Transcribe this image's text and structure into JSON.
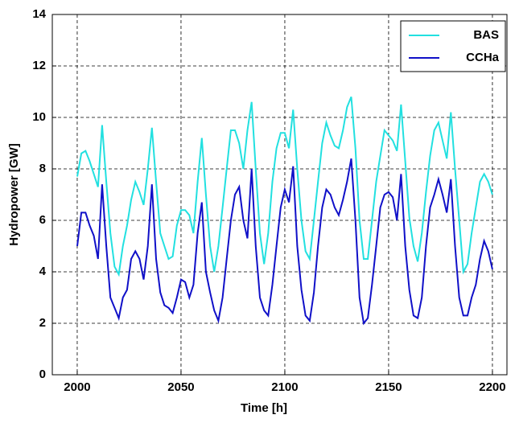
{
  "chart_data": {
    "type": "line",
    "x_label": "Time [h]",
    "y_label": "Hydropower [GW]",
    "x": [
      2000,
      2002,
      2004,
      2006,
      2008,
      2010,
      2012,
      2014,
      2016,
      2018,
      2020,
      2022,
      2024,
      2026,
      2028,
      2030,
      2032,
      2034,
      2036,
      2038,
      2040,
      2042,
      2044,
      2046,
      2048,
      2050,
      2052,
      2054,
      2056,
      2058,
      2060,
      2062,
      2064,
      2066,
      2068,
      2070,
      2072,
      2074,
      2076,
      2078,
      2080,
      2082,
      2084,
      2086,
      2088,
      2090,
      2092,
      2094,
      2096,
      2098,
      2100,
      2102,
      2104,
      2106,
      2108,
      2110,
      2112,
      2114,
      2116,
      2118,
      2120,
      2122,
      2124,
      2126,
      2128,
      2130,
      2132,
      2134,
      2136,
      2138,
      2140,
      2142,
      2144,
      2146,
      2148,
      2150,
      2152,
      2154,
      2156,
      2158,
      2160,
      2162,
      2164,
      2166,
      2168,
      2170,
      2172,
      2174,
      2176,
      2178,
      2180,
      2182,
      2184,
      2186,
      2188,
      2190,
      2192,
      2194,
      2196,
      2198,
      2200
    ],
    "series": [
      {
        "name": "BAS",
        "color": "#22e0e0",
        "values": [
          7.7,
          8.6,
          8.7,
          8.3,
          7.8,
          7.3,
          9.7,
          7.5,
          5.5,
          4.2,
          3.9,
          5.0,
          5.8,
          6.8,
          7.5,
          7.1,
          6.6,
          8.0,
          9.6,
          7.5,
          5.5,
          5.0,
          4.5,
          4.6,
          5.8,
          6.4,
          6.4,
          6.2,
          5.5,
          7.5,
          9.2,
          7.0,
          5.0,
          4.0,
          5.0,
          6.5,
          8.0,
          9.5,
          9.5,
          9.0,
          8.0,
          9.5,
          10.6,
          8.0,
          5.5,
          4.3,
          5.5,
          7.5,
          8.8,
          9.4,
          9.4,
          8.8,
          10.3,
          8.0,
          6.0,
          4.8,
          4.5,
          6.0,
          7.5,
          9.0,
          9.8,
          9.3,
          8.9,
          8.8,
          9.5,
          10.4,
          10.8,
          8.8,
          6.0,
          4.5,
          4.5,
          6.0,
          7.5,
          8.5,
          9.5,
          9.3,
          9.1,
          8.7,
          10.5,
          8.3,
          6.1,
          5.0,
          4.4,
          5.5,
          7.1,
          8.5,
          9.5,
          9.8,
          9.1,
          8.4,
          10.2,
          8.0,
          6.0,
          4.0,
          4.3,
          5.5,
          6.5,
          7.5,
          7.8,
          7.5,
          7.0
        ]
      },
      {
        "name": "CCHa",
        "color": "#1010c8",
        "values": [
          5.0,
          6.3,
          6.3,
          5.8,
          5.4,
          4.5,
          7.4,
          5.0,
          3.0,
          2.6,
          2.2,
          3.0,
          3.3,
          4.5,
          4.8,
          4.5,
          3.7,
          5.0,
          7.4,
          4.5,
          3.2,
          2.7,
          2.6,
          2.4,
          3.0,
          3.7,
          3.6,
          3.0,
          3.5,
          5.5,
          6.7,
          4.0,
          3.2,
          2.5,
          2.1,
          3.0,
          4.5,
          6.0,
          7.0,
          7.3,
          6.0,
          5.3,
          8.0,
          5.0,
          3.0,
          2.5,
          2.3,
          3.5,
          5.0,
          6.5,
          7.2,
          6.7,
          8.1,
          5.0,
          3.3,
          2.3,
          2.1,
          3.2,
          5.0,
          6.5,
          7.2,
          7.0,
          6.5,
          6.2,
          6.8,
          7.5,
          8.4,
          6.0,
          3.0,
          2.0,
          2.2,
          3.5,
          5.0,
          6.5,
          7.0,
          7.1,
          6.9,
          6.0,
          7.8,
          5.0,
          3.3,
          2.3,
          2.2,
          3.0,
          5.0,
          6.5,
          7.0,
          7.6,
          7.0,
          6.3,
          7.6,
          5.0,
          3.0,
          2.3,
          2.3,
          3.0,
          3.5,
          4.5,
          5.2,
          4.8,
          4.1
        ]
      }
    ],
    "xlim": [
      1988,
      2207
    ],
    "xticks": [
      2000,
      2050,
      2100,
      2150,
      2200
    ],
    "ylim": [
      0,
      14
    ],
    "yticks": [
      0,
      2,
      4,
      6,
      8,
      10,
      12,
      14
    ],
    "grid": true,
    "legend": "upper right"
  }
}
